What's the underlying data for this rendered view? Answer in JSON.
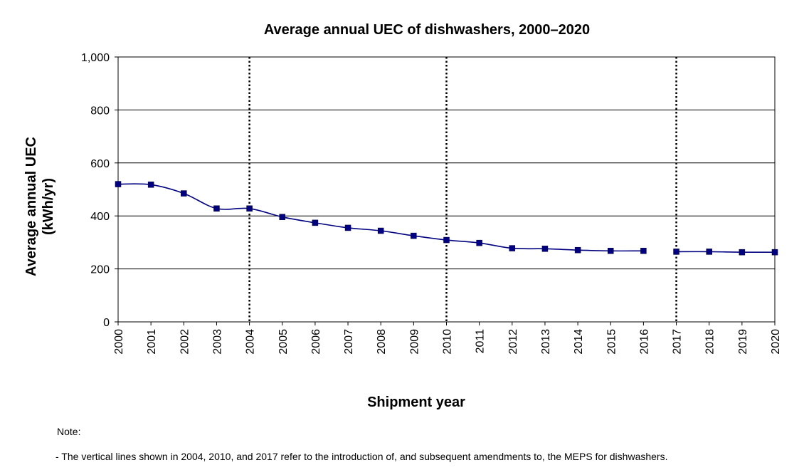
{
  "chart_data": {
    "type": "line",
    "title": "Average annual UEC of dishwashers,  2000–2020",
    "xlabel": "Shipment year",
    "ylabel_line1": "Average annual UEC",
    "ylabel_line2": "(kWh/yr)",
    "ylim": [
      0,
      1000
    ],
    "yticks": [
      0,
      200,
      400,
      600,
      800,
      1000
    ],
    "ytick_labels": [
      "0",
      "200",
      "400",
      "600",
      "800",
      "1,000"
    ],
    "categories": [
      "2000",
      "2001",
      "2002",
      "2003",
      "2004",
      "2005",
      "2006",
      "2007",
      "2008",
      "2009",
      "2010",
      "2011",
      "2012",
      "2013",
      "2014",
      "2015",
      "2016",
      "2017",
      "2018",
      "2019",
      "2020"
    ],
    "series": [
      {
        "segments": [
          [
            520,
            518,
            485,
            428,
            428,
            396,
            374,
            355,
            344,
            325,
            309,
            298,
            278,
            276,
            271,
            268,
            268
          ],
          [
            265,
            265,
            263,
            263
          ]
        ],
        "segment_start_index": [
          0,
          17
        ],
        "color": "#000080"
      }
    ],
    "vertical_lines": [
      "2004",
      "2010",
      "2017"
    ],
    "grid": "horizontal"
  },
  "note": {
    "heading": "Note:",
    "line": "- The vertical lines shown in 2004, 2010, and 2017 refer to the introduction of, and subsequent amendments to, the MEPS for dishwashers."
  }
}
